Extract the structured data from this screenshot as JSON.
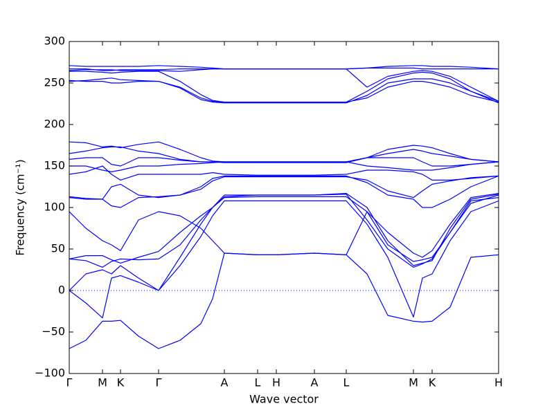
{
  "chart_data": {
    "type": "line",
    "xlabel": "Wave vector",
    "ylabel": "Frequency (cm⁻¹)",
    "color": "#0000ff",
    "hline": 0,
    "xlim": [
      0,
      6.2
    ],
    "xticks": [
      {
        "value": 0,
        "label": "Γ"
      },
      {
        "value": 0.48,
        "label": "M"
      },
      {
        "value": 0.74,
        "label": "K"
      },
      {
        "value": 1.29,
        "label": "Γ"
      },
      {
        "value": 2.24,
        "label": "A"
      },
      {
        "value": 2.72,
        "label": "L"
      },
      {
        "value": 2.99,
        "label": "H"
      },
      {
        "value": 3.54,
        "label": "A"
      },
      {
        "value": 4.0,
        "label": "L"
      },
      {
        "value": 4.97,
        "label": "M"
      },
      {
        "value": 5.24,
        "label": "K"
      },
      {
        "value": 6.2,
        "label": "H"
      }
    ],
    "ylim": [
      -100,
      300
    ],
    "yticks": [
      {
        "value": -100,
        "label": "−100"
      },
      {
        "value": -50,
        "label": "−50"
      },
      0,
      50,
      100,
      150,
      200,
      250,
      300
    ],
    "x": [
      0,
      0.24,
      0.48,
      0.61,
      0.74,
      1.0,
      1.29,
      1.6,
      1.9,
      2.07,
      2.24,
      2.72,
      2.99,
      3.54,
      4.0,
      4.3,
      4.6,
      4.97,
      5.1,
      5.24,
      5.5,
      5.8,
      6.2
    ],
    "series": [
      {
        "values": [
          -70,
          -60,
          -37,
          -37,
          -36,
          -55,
          -70,
          -60,
          -40,
          -10,
          45,
          43,
          43,
          45,
          43,
          20,
          -30,
          -37,
          -38,
          -37,
          -20,
          40,
          43
        ]
      },
      {
        "values": [
          0,
          -15,
          -33,
          15,
          18,
          10,
          0,
          30,
          65,
          90,
          108,
          108,
          108,
          108,
          108,
          80,
          40,
          -32,
          15,
          20,
          60,
          95,
          108
        ]
      },
      {
        "values": [
          0,
          20,
          25,
          20,
          30,
          15,
          0,
          40,
          80,
          100,
          113,
          115,
          115,
          115,
          116,
          85,
          50,
          28,
          32,
          38,
          70,
          105,
          115
        ]
      },
      {
        "values": [
          38,
          36,
          28,
          35,
          38,
          37,
          38,
          55,
          85,
          100,
          115,
          115,
          115,
          115,
          117,
          100,
          60,
          30,
          33,
          36,
          75,
          110,
          116
        ]
      },
      {
        "values": [
          38,
          42,
          42,
          37,
          33,
          40,
          47,
          70,
          90,
          100,
          112,
          113,
          113,
          113,
          113,
          95,
          55,
          35,
          37,
          40,
          70,
          108,
          112
        ]
      },
      {
        "values": [
          95,
          75,
          60,
          55,
          48,
          85,
          95,
          90,
          75,
          60,
          45,
          43,
          43,
          45,
          43,
          95,
          70,
          45,
          40,
          48,
          80,
          112,
          117
        ]
      },
      {
        "values": [
          112,
          110,
          110,
          125,
          128,
          115,
          112,
          115,
          125,
          135,
          138,
          138,
          138,
          138,
          138,
          130,
          115,
          110,
          100,
          100,
          110,
          125,
          138
        ]
      },
      {
        "values": [
          113,
          111,
          110,
          102,
          100,
          112,
          113,
          115,
          122,
          132,
          137,
          137,
          137,
          137,
          137,
          133,
          120,
          112,
          120,
          128,
          132,
          136,
          138
        ]
      },
      {
        "values": [
          140,
          143,
          150,
          140,
          133,
          140,
          140,
          140,
          140,
          142,
          140,
          139,
          139,
          139,
          140,
          145,
          145,
          143,
          140,
          133,
          133,
          135,
          138
        ]
      },
      {
        "values": [
          150,
          150,
          145,
          143,
          145,
          150,
          150,
          152,
          153,
          154,
          155,
          155,
          155,
          155,
          155,
          150,
          148,
          145,
          145,
          145,
          148,
          152,
          155
        ]
      },
      {
        "values": [
          158,
          160,
          160,
          152,
          150,
          160,
          160,
          157,
          155,
          155,
          154,
          154,
          154,
          154,
          154,
          160,
          160,
          160,
          155,
          150,
          150,
          152,
          155
        ]
      },
      {
        "values": [
          165,
          168,
          172,
          173,
          173,
          168,
          165,
          158,
          155,
          155,
          155,
          155,
          155,
          155,
          155,
          160,
          165,
          170,
          168,
          165,
          162,
          158,
          155
        ]
      },
      {
        "values": [
          179,
          178,
          173,
          174,
          172,
          176,
          179,
          170,
          160,
          156,
          155,
          155,
          155,
          155,
          155,
          160,
          170,
          175,
          174,
          172,
          165,
          158,
          155
        ]
      },
      {
        "values": [
          252,
          253,
          255,
          256,
          254,
          253,
          252,
          245,
          232,
          228,
          227,
          227,
          227,
          227,
          227,
          232,
          245,
          252,
          252,
          250,
          245,
          235,
          227
        ]
      },
      {
        "values": [
          253,
          252,
          252,
          250,
          250,
          252,
          252,
          244,
          230,
          227,
          226,
          226,
          226,
          226,
          226,
          235,
          250,
          255,
          255,
          255,
          250,
          240,
          226
        ]
      },
      {
        "values": [
          264,
          264,
          263,
          262,
          263,
          264,
          264,
          252,
          236,
          229,
          227,
          227,
          227,
          227,
          227,
          240,
          255,
          262,
          263,
          262,
          255,
          240,
          228
        ]
      },
      {
        "values": [
          265,
          266,
          266,
          266,
          265,
          265,
          265,
          264,
          266,
          267,
          267,
          267,
          267,
          267,
          267,
          245,
          258,
          264,
          265,
          264,
          258,
          245,
          228
        ]
      },
      {
        "values": [
          267,
          267,
          265,
          265,
          266,
          266,
          266,
          267,
          267,
          267,
          267,
          267,
          267,
          267,
          267,
          268,
          268,
          268,
          267,
          267,
          267,
          267,
          267
        ]
      },
      {
        "values": [
          271,
          270,
          270,
          270,
          270,
          270,
          271,
          270,
          269,
          268,
          267,
          267,
          267,
          267,
          267,
          268,
          270,
          271,
          271,
          270,
          270,
          269,
          267
        ]
      }
    ]
  }
}
